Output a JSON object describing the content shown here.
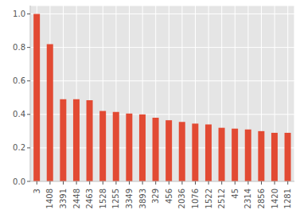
{
  "chart_data": {
    "type": "bar",
    "categories": [
      "3",
      "1408",
      "3391",
      "2448",
      "2463",
      "1528",
      "1255",
      "3349",
      "3893",
      "329",
      "456",
      "2036",
      "1076",
      "1522",
      "2512",
      "45",
      "2314",
      "2856",
      "1420",
      "1281"
    ],
    "values": [
      1.0,
      0.82,
      0.49,
      0.49,
      0.485,
      0.42,
      0.415,
      0.405,
      0.4,
      0.38,
      0.365,
      0.355,
      0.345,
      0.34,
      0.32,
      0.315,
      0.31,
      0.3,
      0.29,
      0.29
    ],
    "color": "#E24A33",
    "ylim": [
      0,
      1.05
    ],
    "yticks": [
      {
        "value": 0,
        "label": "0.0"
      },
      0.2,
      0.4,
      0.6,
      0.8,
      {
        "value": 1,
        "label": "1.0"
      }
    ],
    "grid": true
  }
}
